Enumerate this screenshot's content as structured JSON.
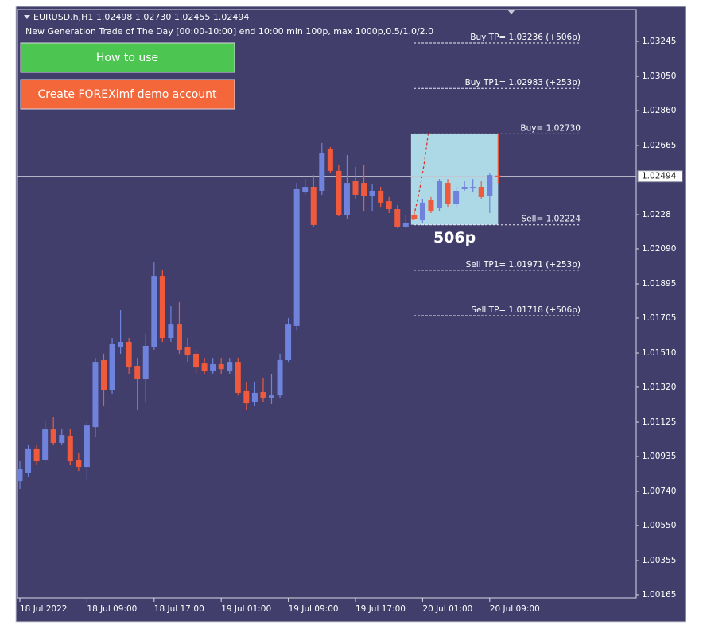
{
  "header": {
    "symbol_line": "EURUSD.h,H1  1.02498 1.02730 1.02455 1.02494",
    "subtitle": "New Generation Trade of The Day [00:00-10:00] end 10:00 min 100p, max 1000p,0.5/1.0/2.0"
  },
  "buttons": [
    {
      "label": "How to use",
      "color": "#4cc651"
    },
    {
      "label": "Create FOREXimf demo account",
      "color": "#f4673a"
    }
  ],
  "chart_data": {
    "type": "candlestick",
    "categories": [
      "18 Jul 2022",
      null,
      null,
      null,
      null,
      null,
      null,
      null,
      "18 Jul 09:00",
      null,
      null,
      null,
      null,
      null,
      null,
      null,
      "18 Jul 17:00",
      null,
      null,
      null,
      null,
      null,
      null,
      null,
      "19 Jul 01:00",
      null,
      null,
      null,
      null,
      null,
      null,
      null,
      "19 Jul 09:00",
      null,
      null,
      null,
      null,
      null,
      null,
      null,
      "19 Jul 17:00",
      null,
      null,
      null,
      null,
      null,
      null,
      null,
      "20 Jul 01:00",
      null,
      null,
      null,
      null,
      null,
      null,
      null,
      "20 Jul 09:00",
      null
    ],
    "open": [
      1.00797,
      1.00842,
      1.00975,
      1.00917,
      1.01085,
      1.0101,
      1.0105,
      1.00917,
      1.00877,
      1.01098,
      1.0147,
      1.01306,
      1.01541,
      1.01572,
      1.01439,
      1.01364,
      1.01541,
      1.01939,
      1.01594,
      1.01669,
      1.01541,
      1.01506,
      1.01452,
      1.01408,
      1.01448,
      1.01408,
      1.01461,
      1.01298,
      1.0124,
      1.01293,
      1.01262,
      1.01275,
      1.0147,
      1.01661,
      1.02404,
      1.02435,
      1.02413,
      1.02643,
      1.02524,
      1.0228,
      1.02466,
      1.02457,
      1.02382,
      1.02413,
      1.02355,
      1.02311,
      1.02214,
      1.0228,
      1.02249,
      1.0236,
      1.02316,
      1.02457,
      1.02338,
      1.02422,
      1.02426,
      1.02435,
      1.02386,
      1.02498
    ],
    "high": [
      1.00908,
      1.00997,
      1.00997,
      1.01129,
      1.01152,
      1.01085,
      1.01085,
      1.00952,
      1.01129,
      1.01483,
      1.01506,
      1.01594,
      1.01749,
      1.01594,
      1.01483,
      1.01616,
      1.02015,
      1.0197,
      1.01771,
      1.01793,
      1.01594,
      1.01528,
      1.01483,
      1.01483,
      1.01483,
      1.01483,
      1.01483,
      1.01351,
      1.01351,
      1.01373,
      1.01395,
      1.01506,
      1.01705,
      1.02457,
      1.02479,
      1.02501,
      1.02679,
      1.02656,
      1.02555,
      1.02612,
      1.02546,
      1.02555,
      1.02448,
      1.02435,
      1.02378,
      1.02333,
      1.0228,
      1.02302,
      1.02369,
      1.02378,
      1.02479,
      1.02479,
      1.02435,
      1.02466,
      1.02479,
      1.02466,
      1.0251,
      1.0273
    ],
    "low": [
      1.00753,
      1.0082,
      1.00886,
      1.00908,
      1.00997,
      1.00997,
      1.00886,
      1.00855,
      1.00806,
      1.01041,
      1.01218,
      1.01284,
      1.01506,
      1.01395,
      1.01196,
      1.0124,
      1.01528,
      1.01572,
      1.01572,
      1.01506,
      1.01461,
      1.01395,
      1.01395,
      1.01395,
      1.01395,
      1.01395,
      1.01275,
      1.01196,
      1.01218,
      1.0124,
      1.01227,
      1.01262,
      1.01461,
      1.01638,
      1.02391,
      1.02214,
      1.02391,
      1.0251,
      1.02271,
      1.02258,
      1.02369,
      1.02302,
      1.02302,
      1.02324,
      1.02289,
      1.02205,
      1.02205,
      1.02249,
      1.02236,
      1.02289,
      1.02302,
      1.02324,
      1.02324,
      1.02413,
      1.02404,
      1.02369,
      1.02289,
      1.02455
    ],
    "close": [
      1.00864,
      1.00975,
      1.00908,
      1.01085,
      1.0101,
      1.01054,
      1.00908,
      1.00877,
      1.01107,
      1.01461,
      1.01306,
      1.01559,
      1.01572,
      1.0143,
      1.01364,
      1.0155,
      1.01939,
      1.01594,
      1.01669,
      1.01528,
      1.01497,
      1.0143,
      1.01408,
      1.01448,
      1.01421,
      1.01461,
      1.01289,
      1.01231,
      1.01289,
      1.01262,
      1.01275,
      1.0147,
      1.01669,
      1.02422,
      1.02435,
      1.02223,
      1.02621,
      1.02524,
      1.0228,
      1.02457,
      1.02391,
      1.02382,
      1.02413,
      1.02347,
      1.02311,
      1.02214,
      1.02236,
      1.02258,
      1.02347,
      1.02302,
      1.02466,
      1.02338,
      1.02413,
      1.02435,
      1.02435,
      1.02378,
      1.02501,
      1.02494
    ],
    "up_color": "#6f82dc",
    "down_color": "#ef5a3c",
    "ylim": [
      1.00147,
      1.03422
    ],
    "yticks": [
      1.03245,
      {
        "value": 1.0305,
        "label": "1.03050"
      },
      {
        "value": 1.0286,
        "label": "1.02860"
      },
      1.02665,
      1.0228,
      {
        "value": 1.0209,
        "label": "1.02090"
      },
      1.01895,
      1.01705,
      {
        "value": 1.0151,
        "label": "1.01510"
      },
      {
        "value": 1.0132,
        "label": "1.01320"
      },
      1.01125,
      1.00935,
      {
        "value": 1.0074,
        "label": "1.00740"
      },
      {
        "value": 1.0055,
        "label": "1.00550"
      },
      1.00355,
      1.00165
    ],
    "bid": 1.02494,
    "levels": [
      {
        "label": "Buy TP= 1.03236  (+506p)",
        "value": 1.03236
      },
      {
        "label": "Buy TP1= 1.02983  (+253p)",
        "value": 1.02983
      },
      {
        "label": "Buy= 1.02730",
        "value": 1.0273
      },
      {
        "label": "Sell= 1.02224",
        "value": 1.02224
      },
      {
        "label": "Sell TP1= 1.01971  (+253p)",
        "value": 1.01971
      },
      {
        "label": "Sell TP= 1.01718  (+506p)",
        "value": 1.01718
      }
    ],
    "range_label": "506p"
  }
}
